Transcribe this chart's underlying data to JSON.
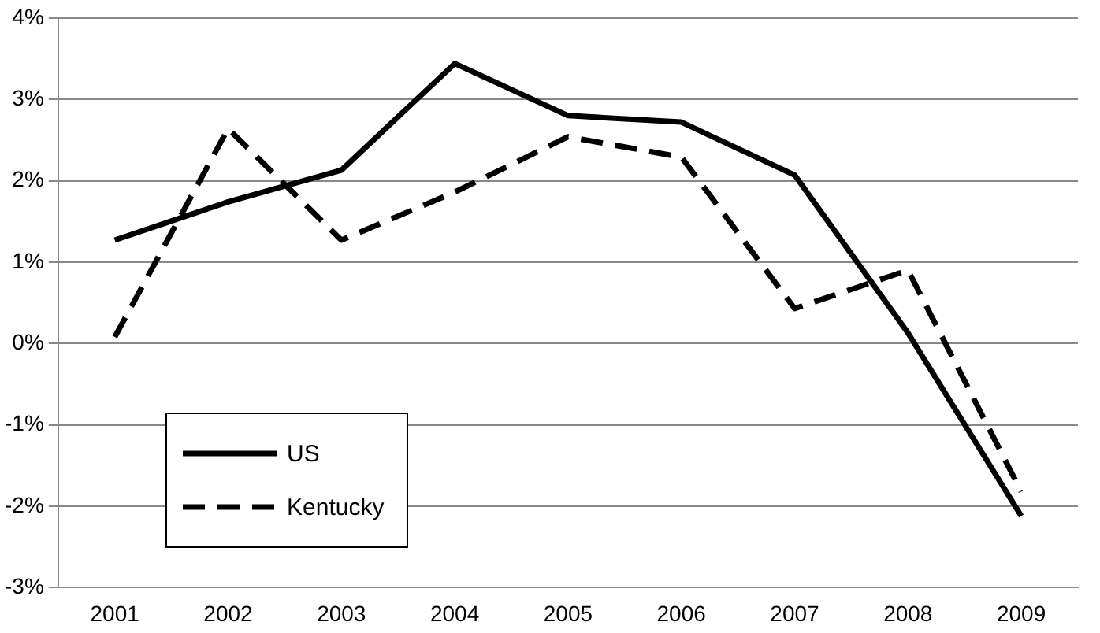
{
  "chart_data": {
    "type": "line",
    "categories": [
      "2001",
      "2002",
      "2003",
      "2004",
      "2005",
      "2006",
      "2007",
      "2008",
      "2009"
    ],
    "series": [
      {
        "name": "US",
        "color": "#000000",
        "line_style": "solid",
        "values": [
          1.27,
          1.74,
          2.13,
          3.44,
          2.8,
          2.72,
          2.07,
          0.13,
          -2.12
        ]
      },
      {
        "name": "Kentucky",
        "color": "#000000",
        "line_style": "dashed",
        "values": [
          0.08,
          2.64,
          1.27,
          1.86,
          2.54,
          2.29,
          0.43,
          0.9,
          -1.82
        ]
      }
    ],
    "ylim": [
      -3,
      4
    ],
    "yticks": [
      {
        "value": -3,
        "label": "-3%"
      },
      {
        "value": -2,
        "label": "-2%"
      },
      {
        "value": -1,
        "label": "-1%"
      },
      {
        "value": 0,
        "label": "0%"
      },
      {
        "value": 1,
        "label": "1%"
      },
      {
        "value": 2,
        "label": "2%"
      },
      {
        "value": 3,
        "label": "3%"
      },
      {
        "value": 4,
        "label": "4%"
      }
    ],
    "grid": "y",
    "legend": "bottom left",
    "marker": "none"
  }
}
